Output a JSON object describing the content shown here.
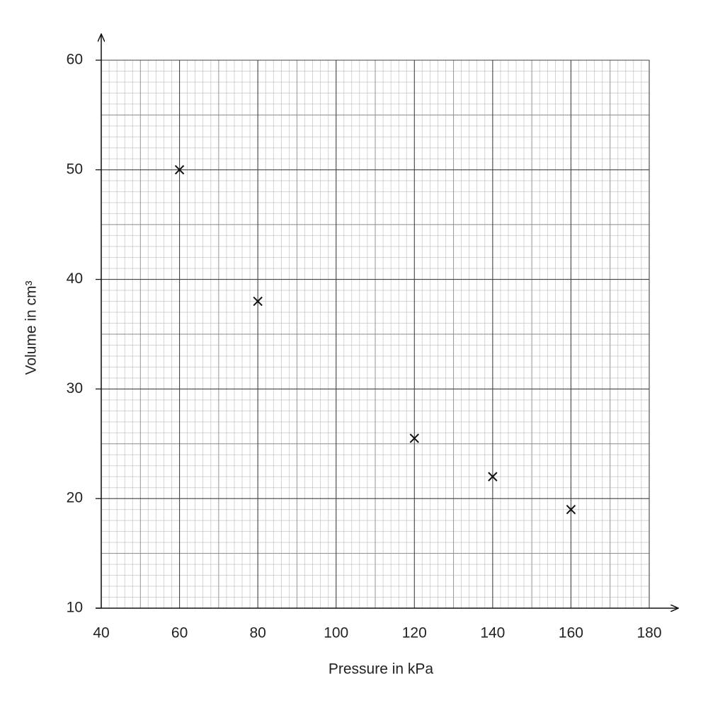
{
  "chart_data": {
    "type": "scatter",
    "x_label": "Pressure in kPa",
    "y_label": "Volume in cm³",
    "x": [
      60,
      80,
      120,
      140,
      160
    ],
    "values": [
      50,
      38,
      25.5,
      22,
      19
    ],
    "color": "#111111",
    "xlim": [
      40,
      180
    ],
    "xticks": [
      40,
      60,
      80,
      100,
      120,
      140,
      160,
      180
    ],
    "ylim": [
      10,
      60
    ],
    "yticks": [
      10,
      20,
      30,
      40,
      50,
      60
    ],
    "grid": true
  }
}
